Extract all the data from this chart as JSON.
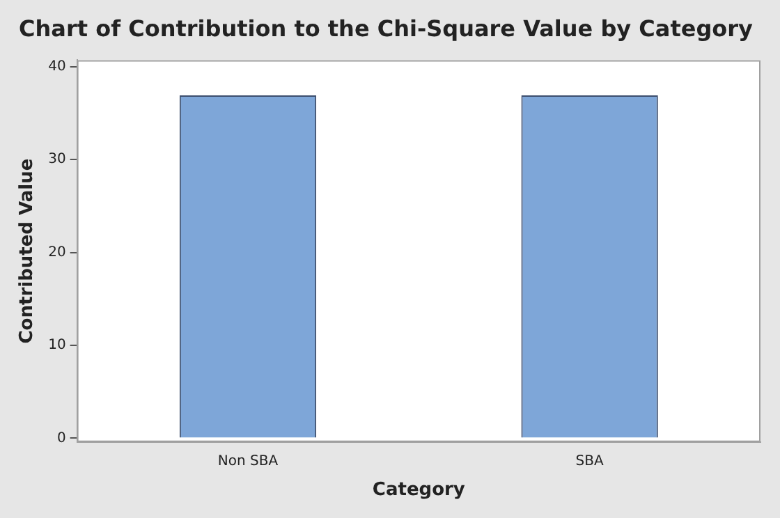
{
  "chart_data": {
    "type": "bar",
    "title": "Chart of Contribution to the Chi-Square Value by Category",
    "xlabel": "Category",
    "ylabel": "Contributed Value",
    "categories": [
      "Non SBA",
      "SBA"
    ],
    "values": [
      36.9,
      36.9
    ],
    "color": "#7ea6d8",
    "ylim": [
      -0.4,
      40.7
    ],
    "yticks": [
      0,
      10,
      20,
      30,
      40
    ],
    "grid": false,
    "legend": false
  }
}
